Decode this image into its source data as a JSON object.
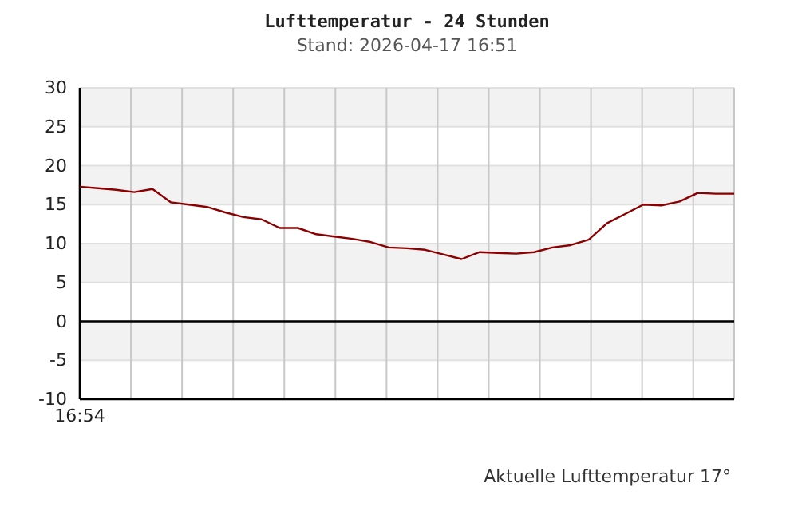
{
  "chart_data": {
    "type": "line",
    "title": "Lufttemperatur - 24 Stunden",
    "subtitle": "Stand: 2026-04-17 16:51",
    "annotations": [
      "Aktuelle Lufttemperatur 17°"
    ],
    "categories": [
      "16:54",
      null,
      null,
      null,
      null,
      null,
      null,
      null,
      null,
      null,
      null,
      null,
      null,
      null,
      null,
      null,
      null,
      null,
      null,
      null,
      null,
      null,
      null,
      null,
      null,
      null,
      null,
      null,
      null,
      null,
      null,
      null,
      null,
      null,
      null,
      null,
      null
    ],
    "series": [
      {
        "color": "#8b0000",
        "values": [
          17.3,
          17.1,
          16.9,
          16.6,
          17.0,
          15.3,
          15.0,
          14.7,
          14.0,
          13.4,
          13.1,
          12.0,
          12.0,
          11.2,
          10.9,
          10.6,
          10.2,
          9.5,
          9.4,
          9.2,
          8.6,
          8.0,
          8.9,
          8.8,
          8.7,
          8.9,
          9.5,
          9.8,
          10.5,
          12.6,
          13.8,
          15.0,
          14.9,
          15.4,
          16.5,
          16.4,
          16.4
        ]
      }
    ],
    "ylim": [
      -10,
      30
    ],
    "yticks": [
      -10,
      -5,
      0,
      5,
      10,
      15,
      20,
      25,
      30
    ],
    "ref_lines": [
      {
        "axis": "y",
        "value": 0,
        "color": "#000000"
      }
    ],
    "grid": true,
    "line_style": "solid"
  }
}
